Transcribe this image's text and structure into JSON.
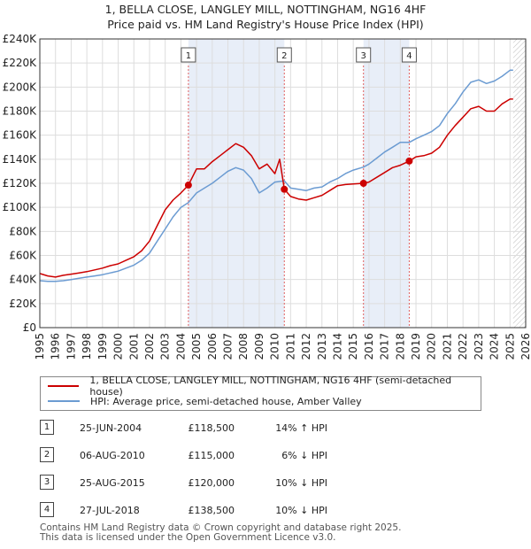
{
  "title_line1": "1, BELLA CLOSE, LANGLEY MILL, NOTTINGHAM, NG16 4HF",
  "title_line2": "Price paid vs. HM Land Registry's House Price Index (HPI)",
  "legend": {
    "property": "1, BELLA CLOSE, LANGLEY MILL, NOTTINGHAM, NG16 4HF (semi-detached house)",
    "hpi": "HPI: Average price, semi-detached house, Amber Valley"
  },
  "colors": {
    "property": "#cc0000",
    "hpi": "#6b9bd2",
    "shade": "#e8eef8",
    "vline": "#e06060",
    "future_hatch": "#bbbbbb"
  },
  "sales": [
    {
      "num": "1",
      "date": "25-JUN-2004",
      "price": "£118,500",
      "hpi": "14% ↑ HPI"
    },
    {
      "num": "2",
      "date": "06-AUG-2010",
      "price": "£115,000",
      "hpi": "6% ↓ HPI"
    },
    {
      "num": "3",
      "date": "25-AUG-2015",
      "price": "£120,000",
      "hpi": "10% ↓ HPI"
    },
    {
      "num": "4",
      "date": "27-JUL-2018",
      "price": "£138,500",
      "hpi": "10% ↓ HPI"
    }
  ],
  "footer_line1": "Contains HM Land Registry data © Crown copyright and database right 2025.",
  "footer_line2": "This data is licensed under the Open Government Licence v3.0.",
  "chart_data": {
    "type": "line",
    "title": "1, BELLA CLOSE, LANGLEY MILL, NOTTINGHAM, NG16 4HF",
    "subtitle": "Price paid vs. HM Land Registry's House Price Index (HPI)",
    "xlim": [
      1995,
      2026
    ],
    "ylim": [
      0,
      240000
    ],
    "x_ticks": [
      1995,
      1996,
      1997,
      1998,
      1999,
      2000,
      2001,
      2002,
      2003,
      2004,
      2005,
      2006,
      2007,
      2008,
      2009,
      2010,
      2011,
      2012,
      2013,
      2014,
      2015,
      2016,
      2017,
      2018,
      2019,
      2020,
      2021,
      2022,
      2023,
      2024,
      2025,
      2026
    ],
    "y_ticks": [
      0,
      20000,
      40000,
      60000,
      80000,
      100000,
      120000,
      140000,
      160000,
      180000,
      200000,
      220000,
      240000
    ],
    "y_tick_labels": [
      "£0",
      "£20K",
      "£40K",
      "£60K",
      "£80K",
      "£100K",
      "£120K",
      "£140K",
      "£160K",
      "£180K",
      "£200K",
      "£220K",
      "£240K"
    ],
    "shaded_spans": [
      [
        2004.48,
        2010.6
      ],
      [
        2015.65,
        2018.57
      ]
    ],
    "future_start": 2025.2,
    "sale_markers": [
      {
        "label": "1",
        "x": 2004.48,
        "y": 118500
      },
      {
        "label": "2",
        "x": 2010.6,
        "y": 115000
      },
      {
        "label": "3",
        "x": 2015.65,
        "y": 120000
      },
      {
        "label": "4",
        "x": 2018.57,
        "y": 138500
      }
    ],
    "series": [
      {
        "name": "1, BELLA CLOSE, LANGLEY MILL, NOTTINGHAM, NG16 4HF (semi-detached house)",
        "x": [
          1995,
          1995.5,
          1996,
          1996.5,
          1997,
          1997.5,
          1998,
          1998.5,
          1999,
          1999.5,
          2000,
          2000.5,
          2001,
          2001.5,
          2002,
          2002.5,
          2003,
          2003.5,
          2004,
          2004.48,
          2005,
          2005.5,
          2006,
          2006.5,
          2007,
          2007.5,
          2008,
          2008.5,
          2009,
          2009.5,
          2010,
          2010.3,
          2010.6,
          2011,
          2011.5,
          2012,
          2012.5,
          2013,
          2013.5,
          2014,
          2014.5,
          2015,
          2015.65,
          2016,
          2016.5,
          2017,
          2017.5,
          2018,
          2018.57,
          2019,
          2019.5,
          2020,
          2020.5,
          2021,
          2021.5,
          2022,
          2022.5,
          2023,
          2023.5,
          2024,
          2024.5,
          2025,
          2025.2
        ],
        "values": [
          45000,
          43000,
          42000,
          43500,
          44500,
          45500,
          46500,
          48000,
          49500,
          51500,
          53000,
          56000,
          59000,
          64000,
          72000,
          85000,
          98000,
          106000,
          112000,
          118500,
          132000,
          132000,
          138000,
          143000,
          148000,
          153000,
          150000,
          143000,
          132000,
          136000,
          128000,
          140000,
          115000,
          109000,
          107000,
          106000,
          108000,
          110000,
          114000,
          118000,
          119000,
          119500,
          120000,
          121000,
          125000,
          129000,
          133000,
          135000,
          138500,
          142000,
          143000,
          145000,
          150000,
          160000,
          168000,
          175000,
          182000,
          184000,
          180000,
          180000,
          186000,
          190000,
          190000
        ]
      },
      {
        "name": "HPI: Average price, semi-detached house, Amber Valley",
        "x": [
          1995,
          1995.5,
          1996,
          1996.5,
          1997,
          1997.5,
          1998,
          1998.5,
          1999,
          1999.5,
          2000,
          2000.5,
          2001,
          2001.5,
          2002,
          2002.5,
          2003,
          2003.5,
          2004,
          2004.48,
          2005,
          2005.5,
          2006,
          2006.5,
          2007,
          2007.5,
          2008,
          2008.5,
          2009,
          2009.5,
          2010,
          2010.6,
          2011,
          2011.5,
          2012,
          2012.5,
          2013,
          2013.5,
          2014,
          2014.5,
          2015,
          2015.65,
          2016,
          2016.5,
          2017,
          2017.5,
          2018,
          2018.57,
          2019,
          2019.5,
          2020,
          2020.5,
          2021,
          2021.5,
          2022,
          2022.5,
          2023,
          2023.5,
          2024,
          2024.5,
          2025,
          2025.2
        ],
        "values": [
          39000,
          38500,
          38500,
          39000,
          40000,
          41000,
          42000,
          43000,
          44000,
          45500,
          47000,
          49500,
          52000,
          56000,
          62000,
          72000,
          82000,
          92000,
          100000,
          104000,
          112000,
          116000,
          120000,
          125000,
          130000,
          133000,
          131000,
          124000,
          112000,
          116000,
          121000,
          122000,
          116000,
          115000,
          114000,
          116000,
          117000,
          121000,
          124000,
          128000,
          131000,
          133500,
          136000,
          141000,
          146000,
          150000,
          154000,
          154000,
          157000,
          160000,
          163000,
          168000,
          178000,
          186000,
          196000,
          204000,
          206000,
          203000,
          205000,
          209000,
          214000,
          214000
        ]
      }
    ]
  }
}
